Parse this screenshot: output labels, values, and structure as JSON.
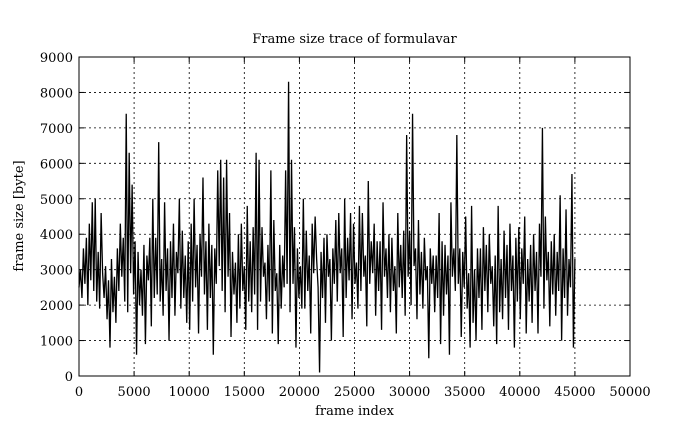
{
  "chart_data": {
    "type": "line",
    "title": "Frame size trace of formulavar",
    "xlabel": "frame index",
    "ylabel": "frame size [byte]",
    "xlim": [
      0,
      50000
    ],
    "ylim": [
      0,
      9000
    ],
    "xticks": [
      0,
      5000,
      10000,
      15000,
      20000,
      25000,
      30000,
      35000,
      40000,
      45000,
      50000
    ],
    "yticks": [
      0,
      1000,
      2000,
      3000,
      4000,
      5000,
      6000,
      7000,
      8000,
      9000
    ],
    "xtick_labels": [
      "0",
      "5000",
      "10000",
      "15000",
      "20000",
      "25000",
      "30000",
      "35000",
      "40000",
      "45000",
      "50000"
    ],
    "ytick_labels": [
      "0",
      "1000",
      "2000",
      "3000",
      "4000",
      "5000",
      "6000",
      "7000",
      "8000",
      "9000"
    ],
    "grid": true,
    "legend": "none",
    "series": [
      {
        "x_start": 0,
        "x_end": 45000,
        "values": [
          2500,
          3000,
          2200,
          3600,
          2600,
          3900,
          2000,
          4300,
          2700,
          4900,
          2400,
          5000,
          2100,
          3500,
          1900,
          4600,
          2900,
          2200,
          3100,
          1600,
          2700,
          800,
          3300,
          1800,
          2800,
          1500,
          3600,
          2400,
          4300,
          2800,
          3900,
          2100,
          7400,
          1800,
          6300,
          2900,
          5400,
          2300,
          3800,
          600,
          3500,
          2000,
          3000,
          1700,
          3700,
          900,
          3400,
          2700,
          3900,
          1400,
          5000,
          2200,
          3900,
          2300,
          6600,
          2100,
          3300,
          1700,
          4900,
          2400,
          3600,
          1000,
          3800,
          2200,
          4300,
          1700,
          3500,
          2900,
          5000,
          1900,
          4100,
          2200,
          3400,
          1500,
          3800,
          1300,
          4300,
          2100,
          5000,
          2500,
          3700,
          1200,
          4000,
          2800,
          5600,
          2300,
          3800,
          1300,
          4300,
          2200,
          3700,
          600,
          3600,
          2600,
          5800,
          3100,
          6100,
          2400,
          5600,
          1800,
          6100,
          2800,
          4600,
          1100,
          3500,
          2300,
          3200,
          1500,
          4000,
          1900,
          4300,
          2400,
          3100,
          1300,
          4800,
          2100,
          3800,
          1800,
          4200,
          2300,
          6300,
          1300,
          6100,
          2100,
          4200,
          2800,
          3200,
          1600,
          3700,
          2100,
          5800,
          1200,
          4400,
          2400,
          2900,
          900,
          3700,
          1900,
          3400,
          2500,
          5800,
          2600,
          8300,
          1800,
          6100,
          2600,
          4200,
          800,
          3600,
          2200,
          3100,
          1900,
          5000,
          1900,
          4100,
          2400,
          3400,
          1200,
          4300,
          2900,
          4500,
          3300,
          2500,
          100,
          3500,
          2200,
          3900,
          1500,
          4000,
          2800,
          3300,
          1000,
          3600,
          2600,
          4400,
          2100,
          4600,
          2900,
          3600,
          1100,
          5000,
          2200,
          3900,
          2700,
          4600,
          1600,
          4300,
          2600,
          3200,
          1900,
          4800,
          2400,
          4600,
          2800,
          3400,
          1400,
          5500,
          2600,
          3800,
          2900,
          4300,
          1700,
          3800,
          2400,
          3800,
          1300,
          4900,
          2800,
          3600,
          2200,
          4000,
          1800,
          3900,
          2400,
          3100,
          1200,
          4600,
          2500,
          3700,
          2200,
          4100,
          1700,
          6800,
          2800,
          4100,
          2000,
          7400,
          3100,
          3600,
          1600,
          4400,
          2300,
          3500,
          1900,
          3900,
          2700,
          3100,
          500,
          3600,
          2600,
          3400,
          1800,
          3400,
          2200,
          4600,
          900,
          3800,
          1700,
          3700,
          2300,
          3400,
          600,
          4900,
          2800,
          3600,
          2400,
          6800,
          2600,
          3600,
          1100,
          3500,
          2500,
          4500,
          1900,
          2900,
          800,
          4800,
          1500,
          3000,
          1000,
          3600,
          2200,
          3600,
          1300,
          4200,
          2400,
          3700,
          1800,
          4000,
          2600,
          3100,
          1400,
          3400,
          900,
          4800,
          1800,
          3300,
          1600,
          4100,
          2200,
          3700,
          1300,
          4300,
          2400,
          3400,
          800,
          3900,
          2100,
          4200,
          1600,
          3600,
          2600,
          4500,
          1200,
          3300,
          2100,
          3700,
          1500,
          4000,
          2400,
          3500,
          1200,
          4300,
          2800,
          7000,
          1900,
          4500,
          2700,
          3500,
          1400,
          3800,
          2300,
          4000,
          1700,
          3500,
          2400,
          5100,
          1000,
          3600,
          2200,
          4700,
          1700,
          3300,
          2500,
          5700,
          800,
          3300
        ]
      }
    ]
  }
}
